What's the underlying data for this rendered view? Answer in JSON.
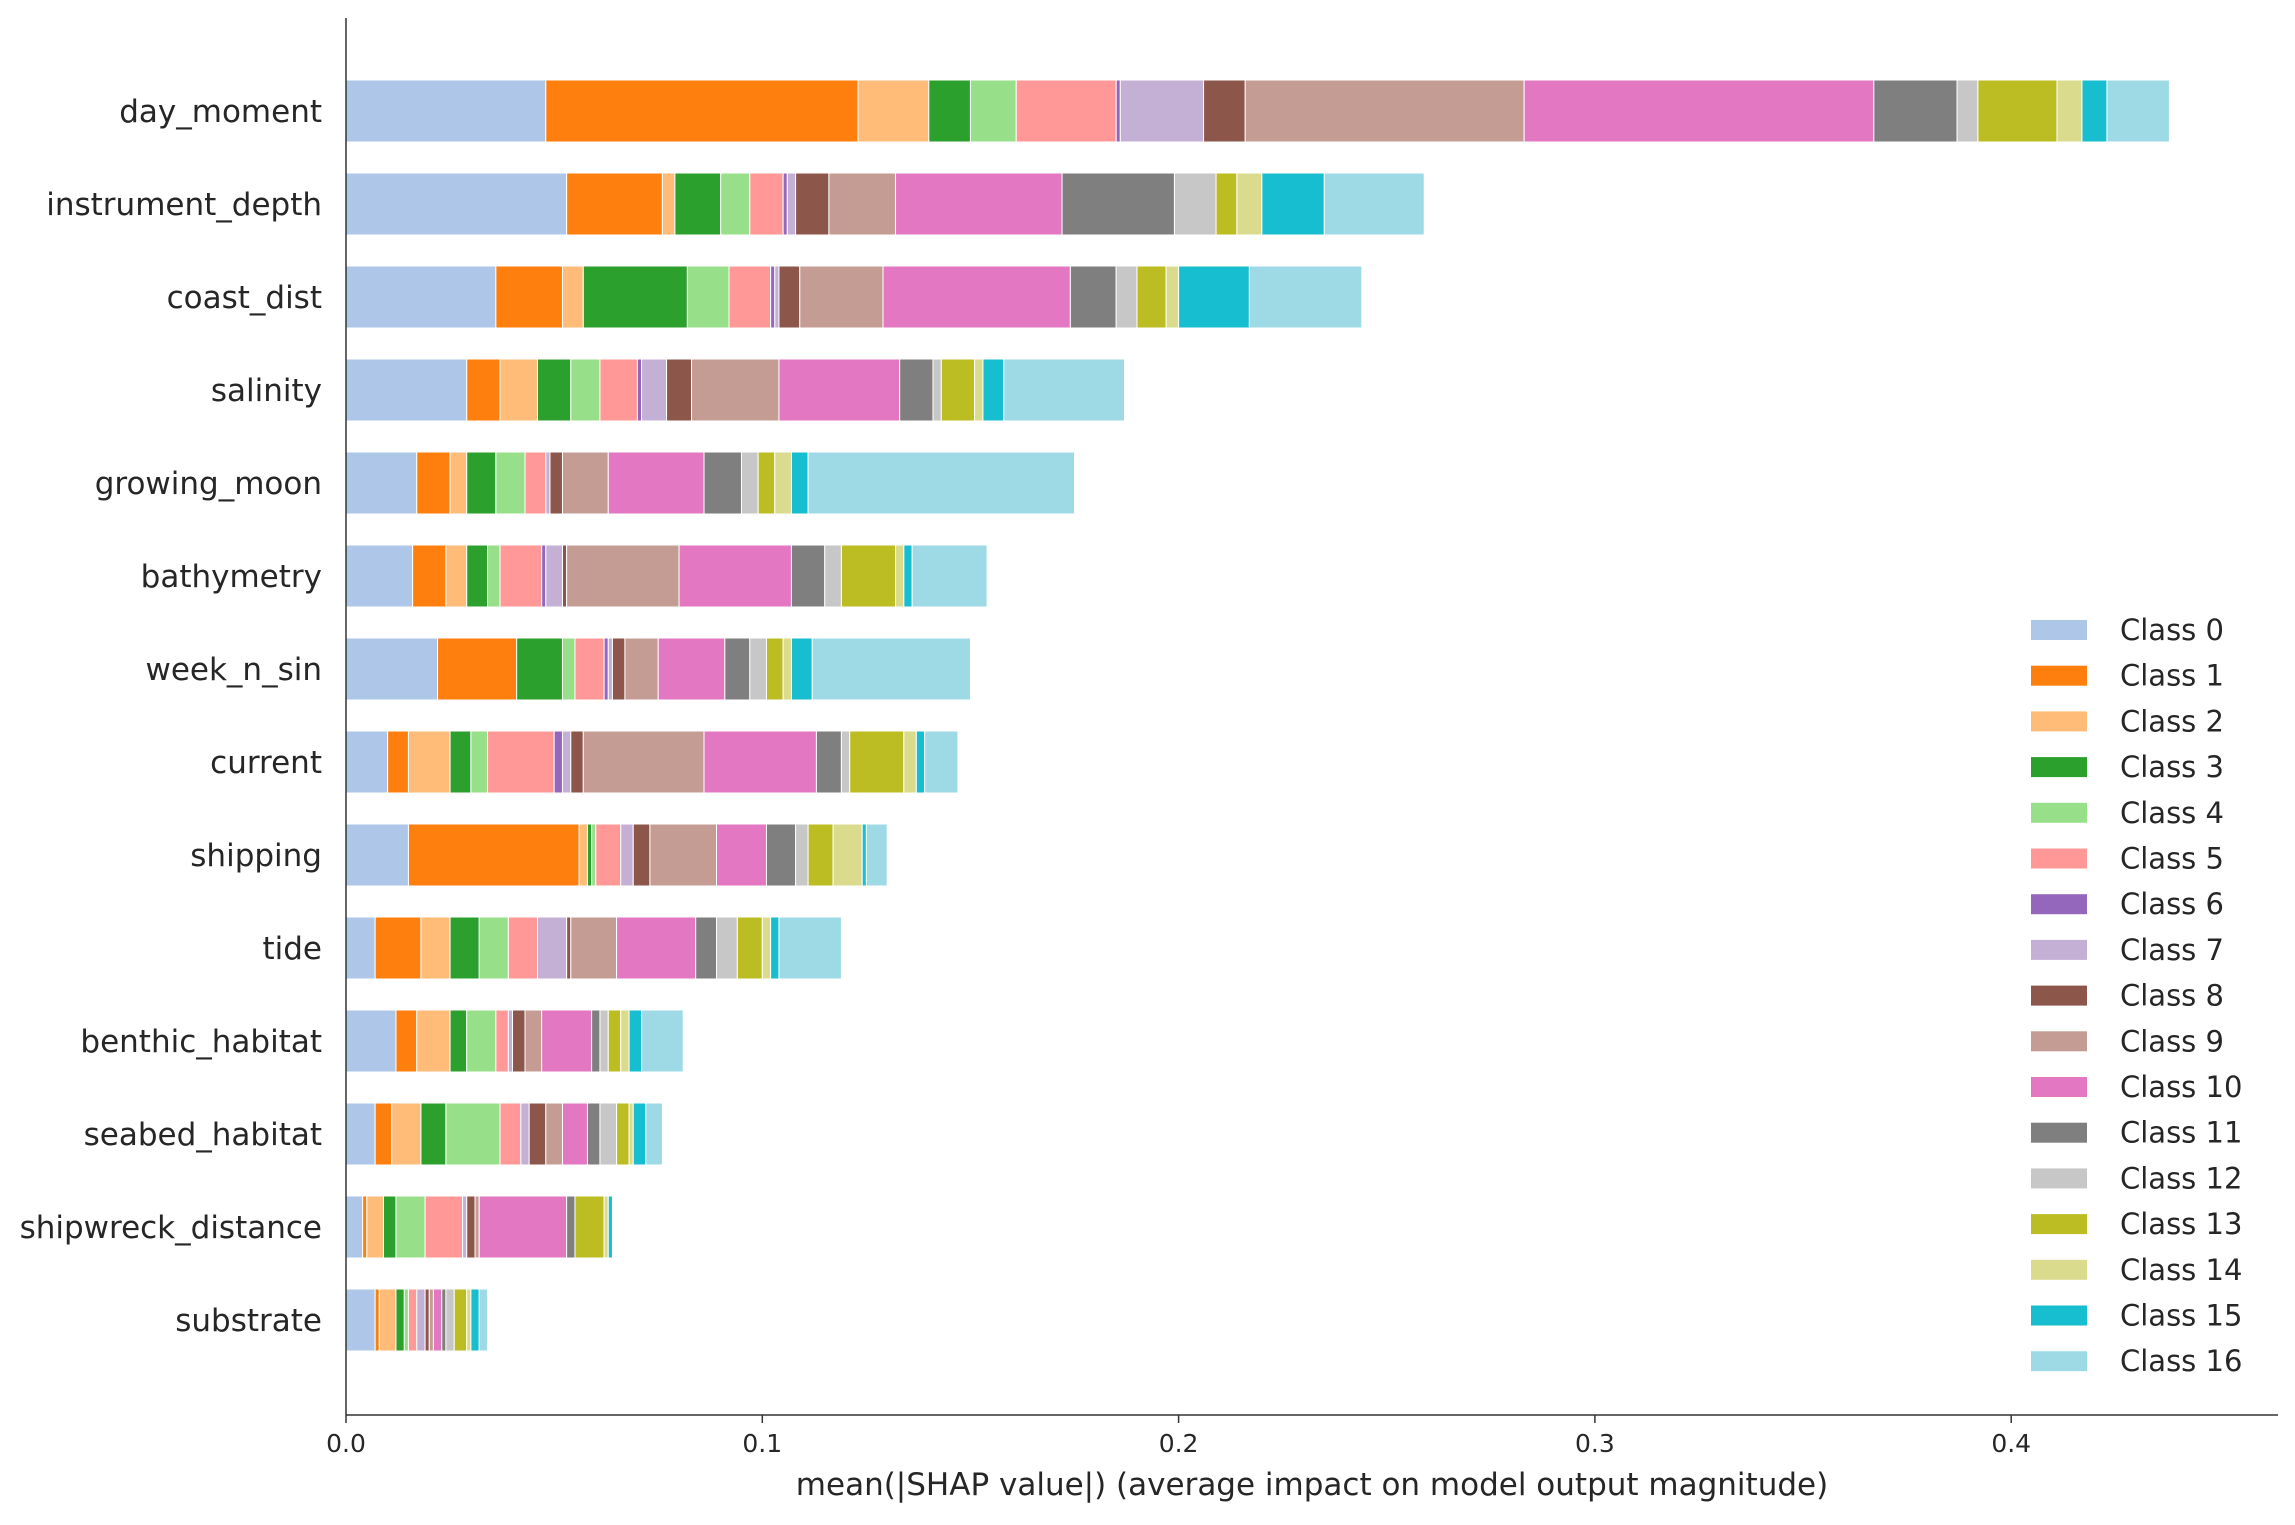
{
  "chart_data": {
    "type": "bar",
    "orientation": "horizontal",
    "stacked": true,
    "title": "",
    "xlabel": "mean(|SHAP value|) (average impact on model output magnitude)",
    "ylabel": "",
    "xlim": [
      0,
      0.46
    ],
    "xticks": [
      "0.0",
      "0.1",
      "0.2",
      "0.3",
      "0.4"
    ],
    "grid": false,
    "legend_position": "lower-right",
    "categories": [
      "day_moment",
      "instrument_depth",
      "coast_dist",
      "salinity",
      "growing_moon",
      "bathymetry",
      "week_n_sin",
      "current",
      "shipping",
      "tide",
      "benthic_habitat",
      "seabed_habitat",
      "shipwreck_distance",
      "substrate"
    ],
    "series": [
      {
        "name": "Class 0",
        "color": "#aec7e8",
        "values": [
          0.048,
          0.053,
          0.036,
          0.029,
          0.017,
          0.016,
          0.022,
          0.01,
          0.015,
          0.007,
          0.012,
          0.007,
          0.004,
          0.007
        ]
      },
      {
        "name": "Class 1",
        "color": "#ff7f0e",
        "values": [
          0.075,
          0.023,
          0.016,
          0.008,
          0.008,
          0.008,
          0.019,
          0.005,
          0.041,
          0.011,
          0.005,
          0.004,
          0.001,
          0.001
        ]
      },
      {
        "name": "Class 2",
        "color": "#ffbb78",
        "values": [
          0.017,
          0.003,
          0.005,
          0.009,
          0.004,
          0.005,
          0.0,
          0.01,
          0.002,
          0.007,
          0.008,
          0.007,
          0.004,
          0.004
        ]
      },
      {
        "name": "Class 3",
        "color": "#2ca02c",
        "values": [
          0.01,
          0.011,
          0.025,
          0.008,
          0.007,
          0.005,
          0.011,
          0.005,
          0.001,
          0.007,
          0.004,
          0.006,
          0.003,
          0.002
        ]
      },
      {
        "name": "Class 4",
        "color": "#98df8a",
        "values": [
          0.011,
          0.007,
          0.01,
          0.007,
          0.007,
          0.003,
          0.003,
          0.004,
          0.001,
          0.007,
          0.007,
          0.013,
          0.007,
          0.001
        ]
      },
      {
        "name": "Class 5",
        "color": "#ff9896",
        "values": [
          0.024,
          0.008,
          0.01,
          0.009,
          0.005,
          0.01,
          0.007,
          0.016,
          0.006,
          0.007,
          0.003,
          0.005,
          0.009,
          0.002
        ]
      },
      {
        "name": "Class 6",
        "color": "#9467bd",
        "values": [
          0.001,
          0.001,
          0.001,
          0.001,
          0.0,
          0.001,
          0.001,
          0.002,
          0.0,
          0.0,
          0.0,
          0.0,
          0.0,
          0.0
        ]
      },
      {
        "name": "Class 7",
        "color": "#c5b0d5",
        "values": [
          0.02,
          0.002,
          0.001,
          0.006,
          0.001,
          0.004,
          0.001,
          0.002,
          0.003,
          0.007,
          0.001,
          0.002,
          0.001,
          0.002
        ]
      },
      {
        "name": "Class 8",
        "color": "#8c564b",
        "values": [
          0.01,
          0.008,
          0.005,
          0.006,
          0.003,
          0.001,
          0.003,
          0.003,
          0.004,
          0.001,
          0.003,
          0.004,
          0.002,
          0.001
        ]
      },
      {
        "name": "Class 9",
        "color": "#c49c94",
        "values": [
          0.067,
          0.016,
          0.02,
          0.021,
          0.011,
          0.027,
          0.008,
          0.029,
          0.016,
          0.011,
          0.004,
          0.004,
          0.001,
          0.001
        ]
      },
      {
        "name": "Class 10",
        "color": "#e377c2",
        "values": [
          0.084,
          0.04,
          0.045,
          0.029,
          0.023,
          0.027,
          0.016,
          0.027,
          0.012,
          0.019,
          0.012,
          0.006,
          0.021,
          0.002
        ]
      },
      {
        "name": "Class 11",
        "color": "#7f7f7f",
        "values": [
          0.02,
          0.027,
          0.011,
          0.008,
          0.009,
          0.008,
          0.006,
          0.006,
          0.007,
          0.005,
          0.002,
          0.003,
          0.002,
          0.001
        ]
      },
      {
        "name": "Class 12",
        "color": "#c7c7c7",
        "values": [
          0.005,
          0.01,
          0.005,
          0.002,
          0.004,
          0.004,
          0.004,
          0.002,
          0.003,
          0.005,
          0.002,
          0.004,
          0.0,
          0.002
        ]
      },
      {
        "name": "Class 13",
        "color": "#bcbd22",
        "values": [
          0.019,
          0.005,
          0.007,
          0.008,
          0.004,
          0.013,
          0.004,
          0.013,
          0.006,
          0.006,
          0.003,
          0.003,
          0.007,
          0.003
        ]
      },
      {
        "name": "Class 14",
        "color": "#dbdb8d",
        "values": [
          0.006,
          0.006,
          0.003,
          0.002,
          0.004,
          0.002,
          0.002,
          0.003,
          0.007,
          0.002,
          0.002,
          0.001,
          0.001,
          0.001
        ]
      },
      {
        "name": "Class 15",
        "color": "#17becf",
        "values": [
          0.006,
          0.015,
          0.017,
          0.005,
          0.004,
          0.002,
          0.005,
          0.002,
          0.001,
          0.002,
          0.003,
          0.003,
          0.001,
          0.002
        ]
      },
      {
        "name": "Class 16",
        "color": "#9edae5",
        "values": [
          0.015,
          0.024,
          0.027,
          0.029,
          0.064,
          0.018,
          0.038,
          0.008,
          0.005,
          0.015,
          0.01,
          0.004,
          0.0,
          0.002
        ]
      }
    ]
  }
}
